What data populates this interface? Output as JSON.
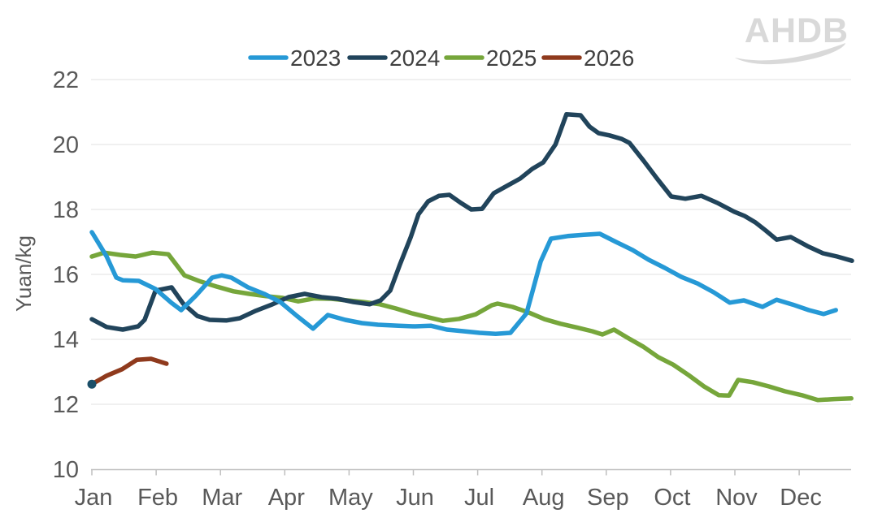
{
  "watermark": "AHDB",
  "chart_data": {
    "type": "line",
    "title": "",
    "ylabel": "Yuan/kg",
    "x_categories": [
      "Jan",
      "Feb",
      "Mar",
      "Apr",
      "May",
      "Jun",
      "Jul",
      "Aug",
      "Sep",
      "Oct",
      "Nov",
      "Dec"
    ],
    "ylim": [
      10,
      22
    ],
    "yticks": [
      10,
      12,
      14,
      16,
      18,
      20,
      22
    ],
    "grid": "horizontal",
    "legend_position": "top",
    "x_unit": "months (0 = Jan tick, weekly data points)",
    "start_marker_color": "#1b4f68",
    "series": [
      {
        "name": "2023",
        "color": "#2699d6",
        "points": [
          [
            0.0,
            17.3
          ],
          [
            0.23,
            16.55
          ],
          [
            0.38,
            15.9
          ],
          [
            0.48,
            15.82
          ],
          [
            0.73,
            15.8
          ],
          [
            0.99,
            15.55
          ],
          [
            1.24,
            15.12
          ],
          [
            1.39,
            14.9
          ],
          [
            1.62,
            15.35
          ],
          [
            1.87,
            15.9
          ],
          [
            2.02,
            15.97
          ],
          [
            2.17,
            15.9
          ],
          [
            2.43,
            15.6
          ],
          [
            2.68,
            15.4
          ],
          [
            2.93,
            15.15
          ],
          [
            3.19,
            14.72
          ],
          [
            3.44,
            14.33
          ],
          [
            3.67,
            14.75
          ],
          [
            3.94,
            14.6
          ],
          [
            4.2,
            14.5
          ],
          [
            4.45,
            14.45
          ],
          [
            4.77,
            14.42
          ],
          [
            5.02,
            14.4
          ],
          [
            5.27,
            14.42
          ],
          [
            5.52,
            14.3
          ],
          [
            5.78,
            14.25
          ],
          [
            6.03,
            14.2
          ],
          [
            6.28,
            14.17
          ],
          [
            6.51,
            14.2
          ],
          [
            6.76,
            14.8
          ],
          [
            6.98,
            16.4
          ],
          [
            7.14,
            17.1
          ],
          [
            7.4,
            17.18
          ],
          [
            7.65,
            17.22
          ],
          [
            7.9,
            17.25
          ],
          [
            8.15,
            17.0
          ],
          [
            8.41,
            16.75
          ],
          [
            8.66,
            16.45
          ],
          [
            8.91,
            16.2
          ],
          [
            9.17,
            15.92
          ],
          [
            9.42,
            15.72
          ],
          [
            9.67,
            15.45
          ],
          [
            9.92,
            15.13
          ],
          [
            10.14,
            15.2
          ],
          [
            10.43,
            15.0
          ],
          [
            10.65,
            15.22
          ],
          [
            10.9,
            15.07
          ],
          [
            11.15,
            14.9
          ],
          [
            11.38,
            14.78
          ],
          [
            11.57,
            14.9
          ]
        ]
      },
      {
        "name": "2024",
        "color": "#21445b",
        "points": [
          [
            0.0,
            14.62
          ],
          [
            0.23,
            14.38
          ],
          [
            0.48,
            14.3
          ],
          [
            0.72,
            14.4
          ],
          [
            0.82,
            14.6
          ],
          [
            0.99,
            15.5
          ],
          [
            1.24,
            15.6
          ],
          [
            1.42,
            15.1
          ],
          [
            1.64,
            14.72
          ],
          [
            1.83,
            14.6
          ],
          [
            2.09,
            14.58
          ],
          [
            2.3,
            14.65
          ],
          [
            2.55,
            14.88
          ],
          [
            2.81,
            15.08
          ],
          [
            3.06,
            15.3
          ],
          [
            3.31,
            15.4
          ],
          [
            3.57,
            15.3
          ],
          [
            3.82,
            15.25
          ],
          [
            4.07,
            15.15
          ],
          [
            4.32,
            15.08
          ],
          [
            4.49,
            15.2
          ],
          [
            4.64,
            15.5
          ],
          [
            4.79,
            16.3
          ],
          [
            4.96,
            17.15
          ],
          [
            5.08,
            17.85
          ],
          [
            5.23,
            18.25
          ],
          [
            5.4,
            18.42
          ],
          [
            5.56,
            18.45
          ],
          [
            5.74,
            18.2
          ],
          [
            5.9,
            18.0
          ],
          [
            6.07,
            18.02
          ],
          [
            6.25,
            18.5
          ],
          [
            6.45,
            18.72
          ],
          [
            6.66,
            18.95
          ],
          [
            6.85,
            19.25
          ],
          [
            7.02,
            19.45
          ],
          [
            7.21,
            20.0
          ],
          [
            7.38,
            20.93
          ],
          [
            7.6,
            20.9
          ],
          [
            7.74,
            20.55
          ],
          [
            7.88,
            20.35
          ],
          [
            8.05,
            20.28
          ],
          [
            8.24,
            20.17
          ],
          [
            8.36,
            20.05
          ],
          [
            8.58,
            19.5
          ],
          [
            8.79,
            18.95
          ],
          [
            9.01,
            18.4
          ],
          [
            9.23,
            18.33
          ],
          [
            9.48,
            18.42
          ],
          [
            9.73,
            18.2
          ],
          [
            9.99,
            17.93
          ],
          [
            10.15,
            17.8
          ],
          [
            10.32,
            17.6
          ],
          [
            10.48,
            17.35
          ],
          [
            10.65,
            17.07
          ],
          [
            10.87,
            17.15
          ],
          [
            11.13,
            16.87
          ],
          [
            11.37,
            16.65
          ],
          [
            11.59,
            16.55
          ],
          [
            11.82,
            16.42
          ]
        ]
      },
      {
        "name": "2025",
        "color": "#76a63b",
        "points": [
          [
            0.0,
            16.55
          ],
          [
            0.19,
            16.67
          ],
          [
            0.44,
            16.6
          ],
          [
            0.68,
            16.55
          ],
          [
            0.94,
            16.67
          ],
          [
            1.19,
            16.62
          ],
          [
            1.44,
            15.97
          ],
          [
            1.69,
            15.78
          ],
          [
            1.95,
            15.62
          ],
          [
            2.2,
            15.48
          ],
          [
            2.45,
            15.4
          ],
          [
            2.71,
            15.33
          ],
          [
            2.96,
            15.28
          ],
          [
            3.21,
            15.17
          ],
          [
            3.46,
            15.26
          ],
          [
            3.72,
            15.25
          ],
          [
            3.97,
            15.2
          ],
          [
            4.22,
            15.15
          ],
          [
            4.48,
            15.08
          ],
          [
            4.73,
            14.95
          ],
          [
            4.98,
            14.8
          ],
          [
            5.23,
            14.68
          ],
          [
            5.46,
            14.57
          ],
          [
            5.71,
            14.63
          ],
          [
            5.97,
            14.77
          ],
          [
            6.22,
            15.05
          ],
          [
            6.31,
            15.1
          ],
          [
            6.54,
            15.0
          ],
          [
            6.79,
            14.83
          ],
          [
            7.04,
            14.62
          ],
          [
            7.29,
            14.48
          ],
          [
            7.55,
            14.36
          ],
          [
            7.78,
            14.25
          ],
          [
            7.94,
            14.15
          ],
          [
            8.12,
            14.3
          ],
          [
            8.33,
            14.05
          ],
          [
            8.57,
            13.78
          ],
          [
            8.81,
            13.45
          ],
          [
            9.04,
            13.22
          ],
          [
            9.28,
            12.9
          ],
          [
            9.52,
            12.55
          ],
          [
            9.75,
            12.28
          ],
          [
            9.91,
            12.27
          ],
          [
            10.05,
            12.75
          ],
          [
            10.28,
            12.68
          ],
          [
            10.53,
            12.55
          ],
          [
            10.78,
            12.4
          ],
          [
            11.04,
            12.28
          ],
          [
            11.29,
            12.13
          ],
          [
            11.54,
            12.16
          ],
          [
            11.81,
            12.18
          ]
        ]
      },
      {
        "name": "2026",
        "color": "#8f3a1d",
        "points": [
          [
            0.0,
            12.62
          ],
          [
            0.23,
            12.88
          ],
          [
            0.47,
            13.08
          ],
          [
            0.7,
            13.37
          ],
          [
            0.92,
            13.4
          ],
          [
            1.16,
            13.25
          ]
        ]
      }
    ]
  }
}
